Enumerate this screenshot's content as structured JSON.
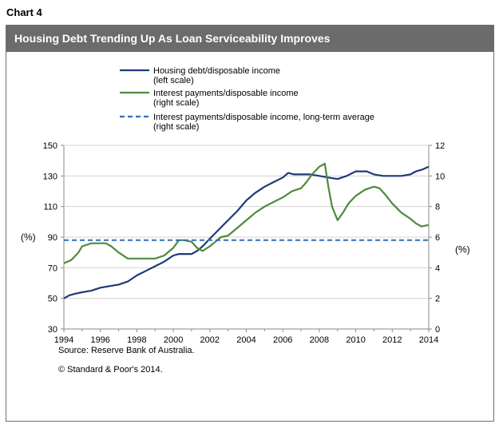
{
  "header": {
    "chart_label": "Chart 4"
  },
  "colors": {
    "housing": "#1f3a7a",
    "interest": "#4f8a3c",
    "average": "#2e6fba",
    "title_bg": "#6b6b6b"
  },
  "chart_data": {
    "type": "line",
    "title": "Housing Debt Trending Up As Loan Serviceability Improves",
    "x_ticks": [
      "1994",
      "1996",
      "1998",
      "2000",
      "2002",
      "2004",
      "2006",
      "2008",
      "2010",
      "2012",
      "2014"
    ],
    "xlim": [
      1994,
      2014
    ],
    "y_left": {
      "label": "(%)",
      "lim": [
        30,
        150
      ],
      "ticks": [
        "30",
        "50",
        "70",
        "90",
        "110",
        "130",
        "150"
      ]
    },
    "y_right": {
      "label": "(%)",
      "lim": [
        0,
        12
      ],
      "ticks": [
        "0",
        "2",
        "4",
        "6",
        "8",
        "10",
        "12"
      ]
    },
    "series": [
      {
        "name": "Housing debt/disposable income",
        "name_line2": "(left scale)",
        "axis": "left",
        "style": "solid",
        "x": [
          1994.0,
          1994.3,
          1994.6,
          1995.0,
          1995.5,
          1996.0,
          1996.5,
          1997.0,
          1997.5,
          1998.0,
          1998.5,
          1999.0,
          1999.5,
          2000.0,
          2000.3,
          2000.6,
          2001.0,
          2001.3,
          2001.6,
          2002.0,
          2002.5,
          2003.0,
          2003.5,
          2004.0,
          2004.5,
          2005.0,
          2005.5,
          2006.0,
          2006.3,
          2006.6,
          2007.0,
          2007.5,
          2008.0,
          2008.5,
          2009.0,
          2009.5,
          2010.0,
          2010.3,
          2010.6,
          2011.0,
          2011.5,
          2012.0,
          2012.5,
          2013.0,
          2013.3,
          2013.6,
          2014.0
        ],
        "values": [
          50,
          52,
          53,
          54,
          55,
          57,
          58,
          59,
          61,
          65,
          68,
          71,
          74,
          78,
          79,
          79,
          79,
          81,
          84,
          89,
          95,
          101,
          107,
          114,
          119,
          123,
          126,
          129,
          132,
          131,
          131,
          131,
          130,
          129,
          128,
          130,
          133,
          133,
          133,
          131,
          130,
          130,
          130,
          131,
          133,
          134,
          136
        ]
      },
      {
        "name": "Interest payments/disposable income",
        "name_line2": "(right scale)",
        "axis": "right",
        "style": "solid",
        "x": [
          1994.0,
          1994.4,
          1994.8,
          1995.0,
          1995.5,
          1996.0,
          1996.3,
          1996.6,
          1997.0,
          1997.5,
          1998.0,
          1998.5,
          1999.0,
          1999.5,
          2000.0,
          2000.3,
          2000.6,
          2001.0,
          2001.3,
          2001.6,
          2002.0,
          2002.3,
          2002.6,
          2003.0,
          2003.5,
          2004.0,
          2004.5,
          2005.0,
          2005.5,
          2006.0,
          2006.5,
          2007.0,
          2007.3,
          2007.6,
          2008.0,
          2008.3,
          2008.5,
          2008.7,
          2009.0,
          2009.3,
          2009.6,
          2010.0,
          2010.5,
          2011.0,
          2011.3,
          2011.6,
          2012.0,
          2012.5,
          2013.0,
          2013.3,
          2013.6,
          2014.0
        ],
        "values": [
          4.3,
          4.5,
          5.0,
          5.4,
          5.6,
          5.6,
          5.6,
          5.4,
          5.0,
          4.6,
          4.6,
          4.6,
          4.6,
          4.8,
          5.3,
          5.8,
          5.8,
          5.7,
          5.3,
          5.1,
          5.4,
          5.7,
          6.0,
          6.1,
          6.6,
          7.1,
          7.6,
          8.0,
          8.3,
          8.6,
          9.0,
          9.2,
          9.6,
          10.1,
          10.6,
          10.8,
          9.3,
          8.0,
          7.1,
          7.6,
          8.2,
          8.7,
          9.1,
          9.3,
          9.2,
          8.8,
          8.2,
          7.6,
          7.2,
          6.9,
          6.7,
          6.8
        ]
      },
      {
        "name": "Interest payments/disposable income, long-term average",
        "name_line2": "(right scale)",
        "axis": "right",
        "style": "dashed",
        "x": [
          1994,
          2014
        ],
        "values": [
          5.8,
          5.8
        ]
      }
    ]
  },
  "footer": {
    "source": "Source: Reserve Bank of Australia.",
    "copyright": "© Standard & Poor's 2014."
  }
}
